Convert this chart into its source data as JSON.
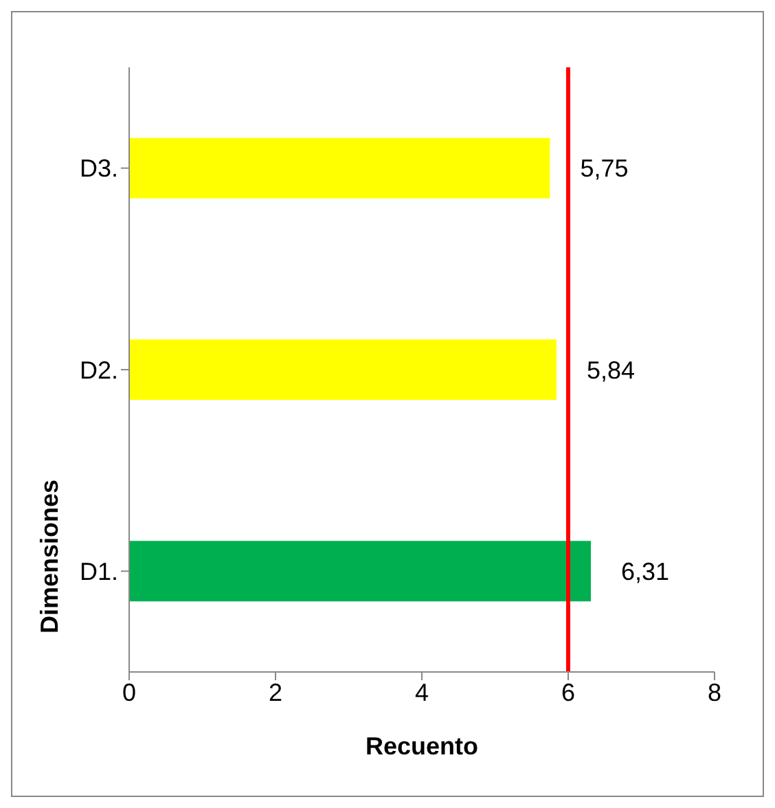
{
  "chart_data": {
    "type": "bar",
    "orientation": "horizontal",
    "xlabel": "Recuento",
    "ylabel": "Dimensiones",
    "categories": [
      "D3.",
      "D2.",
      "D1."
    ],
    "values": [
      5.75,
      5.84,
      6.31
    ],
    "colors": [
      "#ffff00",
      "#ffff00",
      "#00b050"
    ],
    "value_labels": [
      "5,75",
      "5,84",
      "6,31"
    ],
    "xlim": [
      0,
      8
    ],
    "xticks": [
      0,
      2,
      4,
      6,
      8
    ],
    "ref_lines": [
      {
        "axis": "x",
        "value": 6,
        "color": "#ff0000"
      }
    ],
    "grid": false
  }
}
